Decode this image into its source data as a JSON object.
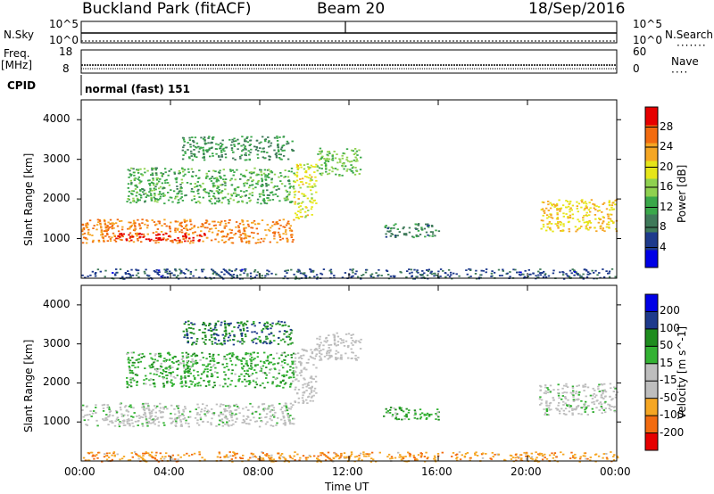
{
  "header": {
    "station": "Buckland Park (fitACF)",
    "beam": "Beam 20",
    "date": "18/Sep/2016"
  },
  "noise_panel": {
    "left_label": "N.Sky",
    "left_ticks": [
      "10^5",
      "10^0"
    ],
    "right_label": "N.Search",
    "right_ticks": [
      "10^5",
      "10^0"
    ]
  },
  "freq_panel": {
    "left_label_line1": "Freq.",
    "left_label_line2": "[MHz]",
    "left_ticks": [
      "18",
      "8"
    ],
    "right_label": "Nave",
    "right_ticks": [
      "60",
      "0"
    ],
    "cpid_label": "CPID",
    "cpid_text": "normal (fast) 151"
  },
  "colors": {
    "power_scale": [
      "#0000e6",
      "#1e3a8c",
      "#3f7a5a",
      "#3aa84a",
      "#8fd14f",
      "#e6e619",
      "#f5a623",
      "#f26b10",
      "#e60000"
    ],
    "velocity_scale": [
      "#e60000",
      "#f26b10",
      "#f5a623",
      "#bebebe",
      "#bebebe",
      "#33b233",
      "#1e8c1e",
      "#1e3a8c",
      "#0000e6"
    ]
  },
  "chart_data": [
    {
      "type": "heatmap",
      "title": "",
      "ylabel": "Slant Range [km]",
      "ylim": [
        0,
        4500
      ],
      "y_ticks": [
        "1000",
        "2000",
        "3000",
        "4000"
      ],
      "xlim_hours": [
        0,
        24
      ],
      "colorbar_label": "Power [dB]",
      "colorbar_ticks": [
        "4",
        "8",
        "12",
        "16",
        "20",
        "24",
        "28"
      ],
      "colorbar_range": [
        0,
        30
      ],
      "bands": [
        {
          "x": [
            0.0,
            9.5
          ],
          "y": [
            900,
            1500
          ],
          "value": 24
        },
        {
          "x": [
            1.5,
            5.5
          ],
          "y": [
            950,
            1150
          ],
          "value": 29
        },
        {
          "x": [
            9.5,
            10.5
          ],
          "y": [
            1500,
            2900
          ],
          "value": 18
        },
        {
          "x": [
            2.0,
            9.5
          ],
          "y": [
            1900,
            2800
          ],
          "value": 12
        },
        {
          "x": [
            4.5,
            9.5
          ],
          "y": [
            3000,
            3600
          ],
          "value": 10
        },
        {
          "x": [
            10.5,
            12.5
          ],
          "y": [
            2600,
            3300
          ],
          "value": 14
        },
        {
          "x": [
            13.5,
            16.0
          ],
          "y": [
            1050,
            1400
          ],
          "value": 9
        },
        {
          "x": [
            20.5,
            24.0
          ],
          "y": [
            1200,
            2000
          ],
          "value": 20
        },
        {
          "x": [
            0.0,
            24.0
          ],
          "y": [
            0,
            250
          ],
          "value": 6
        }
      ]
    },
    {
      "type": "heatmap",
      "title": "",
      "ylabel": "Slant Range [km]",
      "xlabel": "Time UT",
      "ylim": [
        0,
        4500
      ],
      "y_ticks": [
        "1000",
        "2000",
        "3000",
        "4000"
      ],
      "x_ticks": [
        "00:00",
        "04:00",
        "08:00",
        "12:00",
        "16:00",
        "20:00",
        "00:00"
      ],
      "xlim_hours": [
        0,
        24
      ],
      "colorbar_label": "Velocity [m s^-1]",
      "colorbar_ticks": [
        "-200",
        "-100",
        "-50",
        "-15",
        "15",
        "50",
        "100",
        "200"
      ],
      "colorbar_range": [
        -250,
        250
      ],
      "bands": [
        {
          "x": [
            0.0,
            9.5
          ],
          "y": [
            900,
            1500
          ],
          "value": 0
        },
        {
          "x": [
            2.0,
            9.5
          ],
          "y": [
            1900,
            2800
          ],
          "value": 60
        },
        {
          "x": [
            4.5,
            9.5
          ],
          "y": [
            3000,
            3600
          ],
          "value": 120
        },
        {
          "x": [
            9.5,
            10.5
          ],
          "y": [
            1500,
            2900
          ],
          "value": -20
        },
        {
          "x": [
            10.5,
            12.5
          ],
          "y": [
            2600,
            3300
          ],
          "value": -30
        },
        {
          "x": [
            13.5,
            16.0
          ],
          "y": [
            1050,
            1400
          ],
          "value": 60
        },
        {
          "x": [
            20.5,
            24.0
          ],
          "y": [
            1200,
            2000
          ],
          "value": 0
        },
        {
          "x": [
            0.0,
            24.0
          ],
          "y": [
            0,
            250
          ],
          "value": -120
        }
      ]
    }
  ]
}
